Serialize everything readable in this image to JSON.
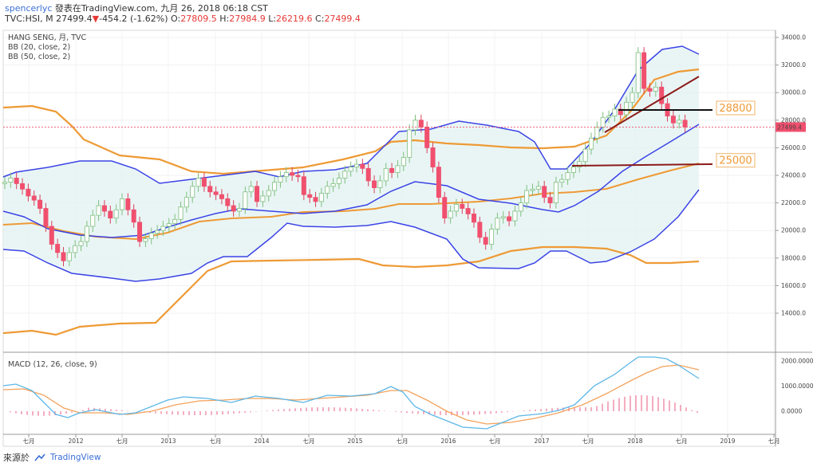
{
  "header": {
    "user": "spencerlyc",
    "published": "發表在TradingView.com, 九月 26, 2018 06:18 CST",
    "symbol": "TVC:HSI, M",
    "price": "27499.4",
    "arrow": "▼",
    "change": "-454.2 (-1.62%)",
    "o_label": "O:",
    "o_value": "27809.5",
    "h_label": "H:",
    "h_value": "27984.9",
    "l_label": "L:",
    "l_value": "26219.6",
    "c_label": "C:",
    "c_value": "27499.4"
  },
  "legend": {
    "title": "HANG SENG, 月, TVC",
    "bb20": "BB (20, close, 2)",
    "bb50": "BB (50, close, 2)"
  },
  "macd": {
    "label": "MACD (12, 26, close, 9)"
  },
  "footer": {
    "source": "來源於",
    "brand": "TradingView"
  },
  "colors": {
    "up": "#c5e6c5",
    "down": "#f0506e",
    "bb20": "#3b44e6",
    "bb50": "#ee9a35",
    "level_line": "#8b1a1a",
    "price_line": "#f0506e"
  },
  "chart_data": {
    "type": "candlestick",
    "x_ticks": [
      "七月",
      "2012",
      "七月",
      "2013",
      "七月",
      "2014",
      "七月",
      "2015",
      "七月",
      "2016",
      "七月",
      "2017",
      "七月",
      "2018",
      "七月",
      "2019",
      "七月"
    ],
    "y_ticks": [
      "34000.0",
      "32000.0",
      "30000.0",
      "28000.0",
      "26000.0",
      "24000.0",
      "22000.0",
      "20000.0",
      "18000.0",
      "16000.0",
      "14000.0"
    ],
    "ylim": [
      12500,
      34800
    ],
    "current_price": "27499.4",
    "annotations": [
      {
        "text": "28800",
        "value": 28800
      },
      {
        "text": "25000",
        "value": 25000
      }
    ],
    "macd_ticks": [
      "2000.0000",
      "1000.0000",
      "0.0000"
    ],
    "macd_ylim": [
      -900,
      2200
    ]
  }
}
